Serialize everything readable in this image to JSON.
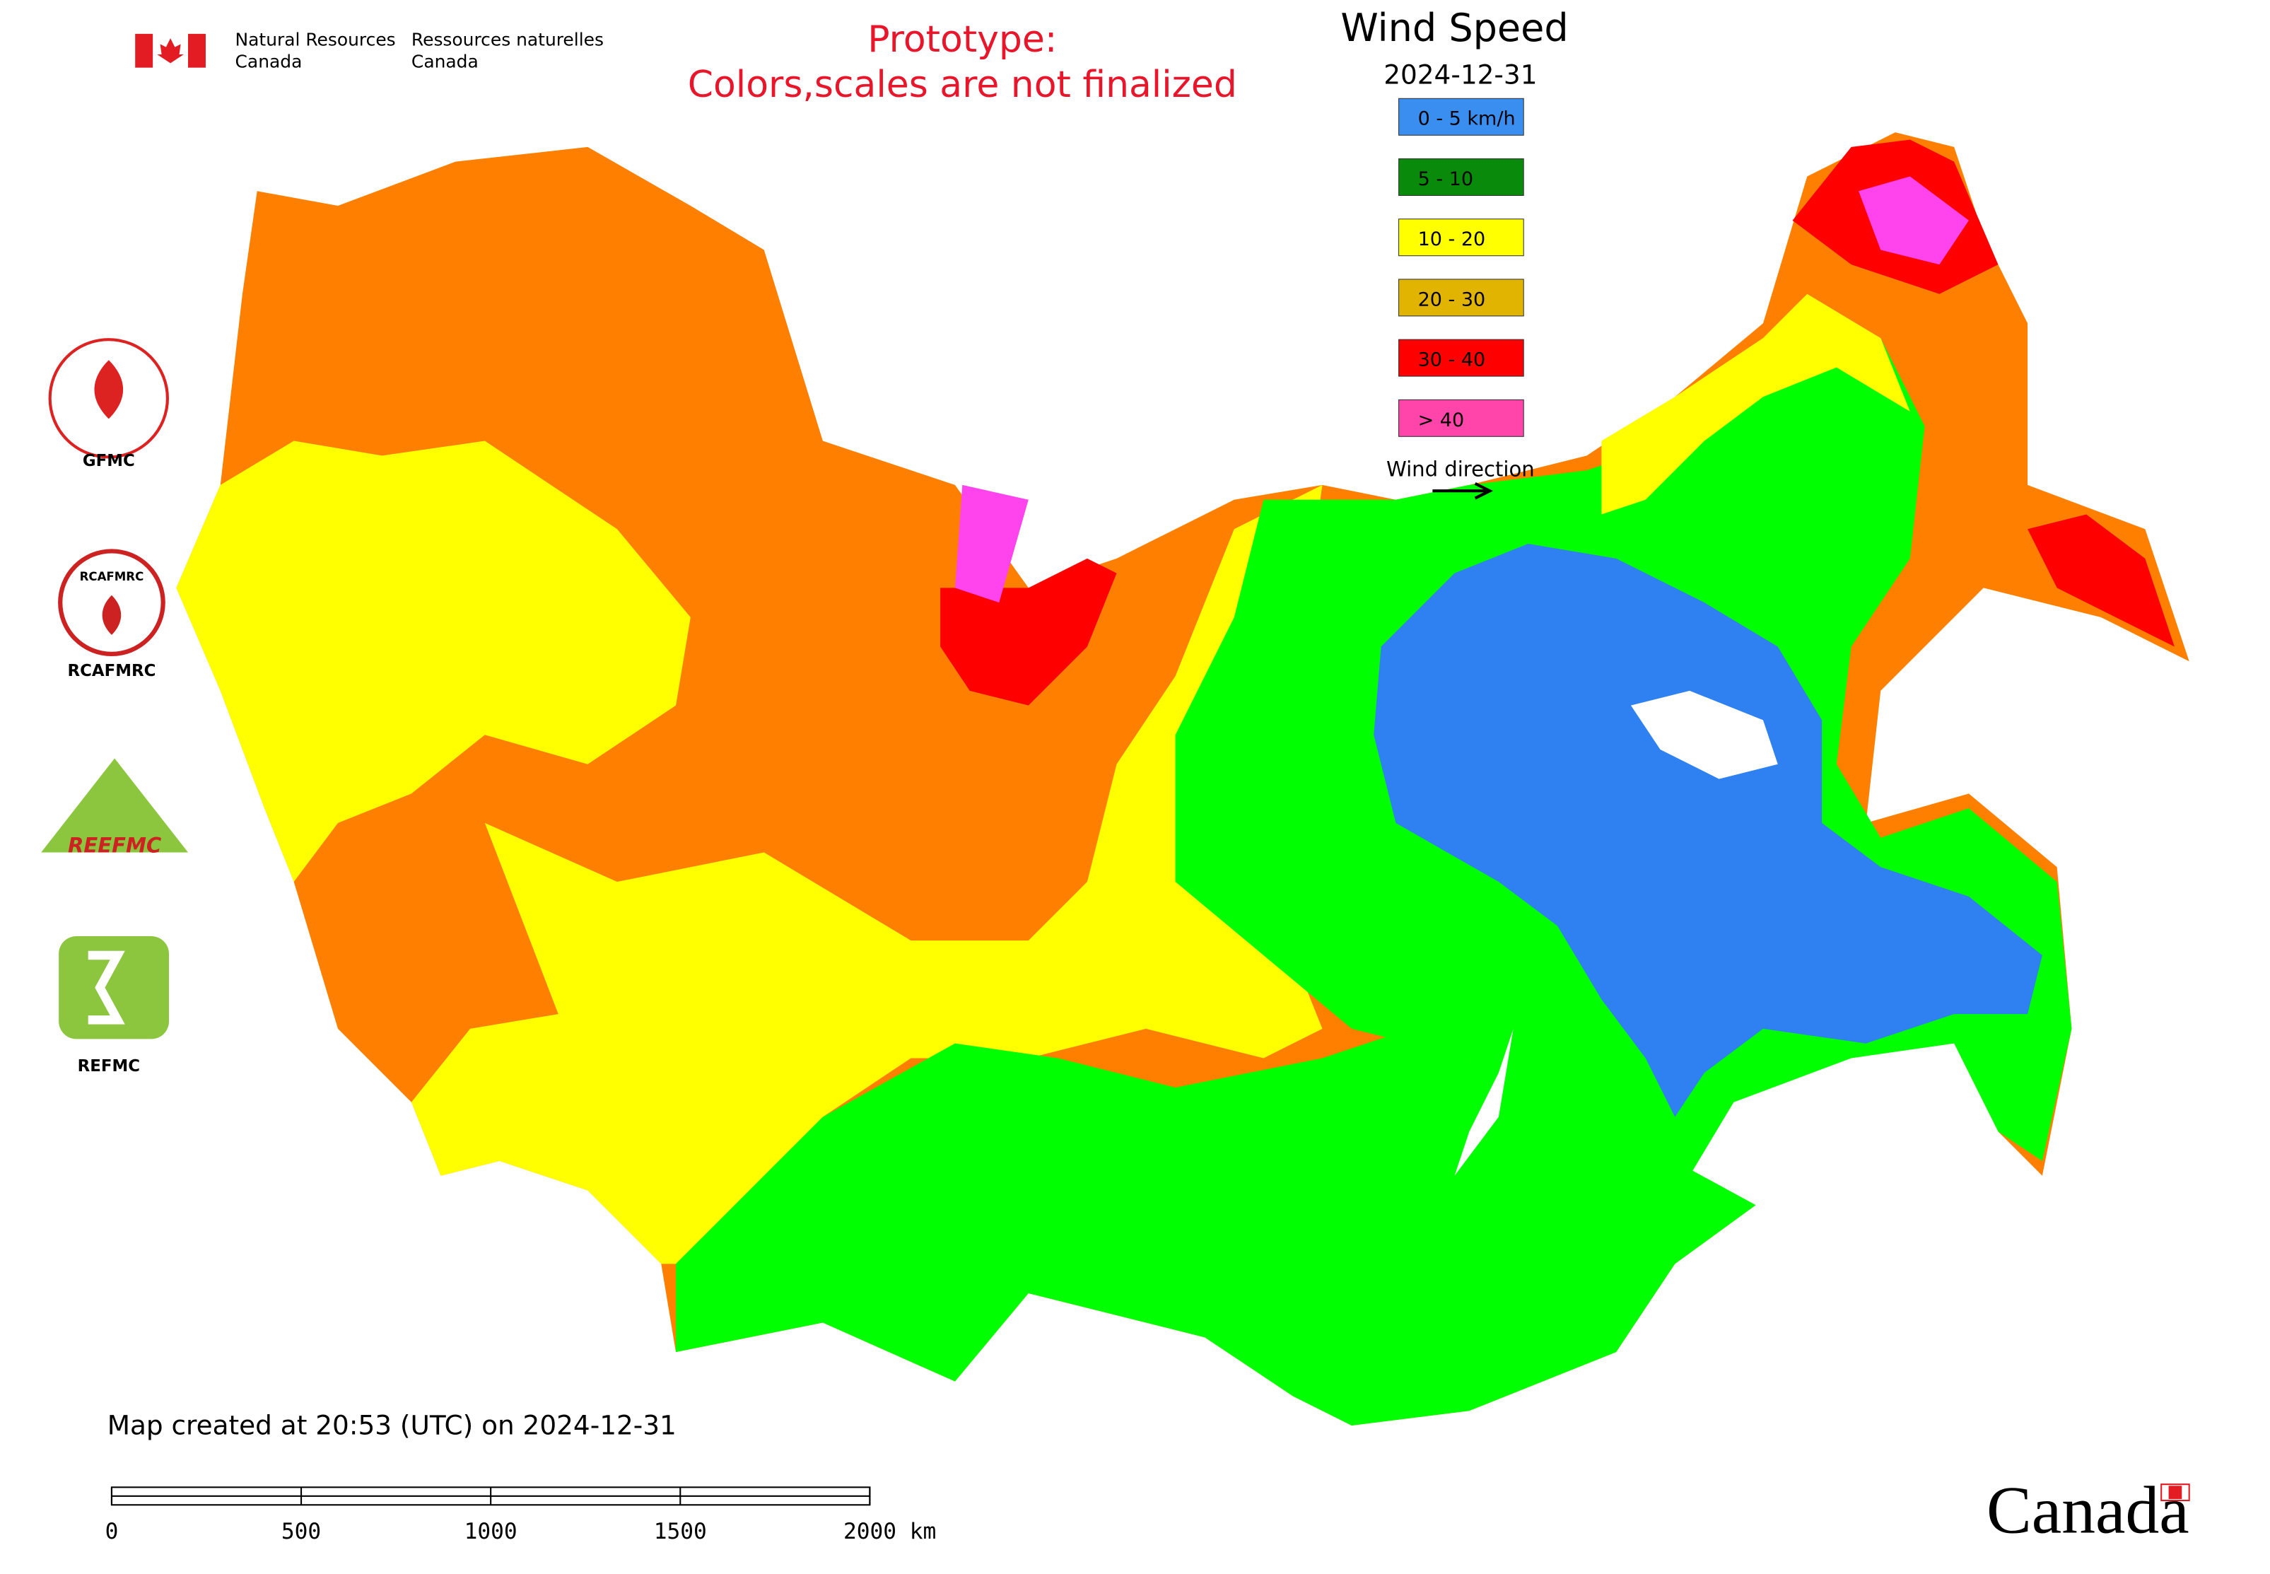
{
  "header": {
    "dept_en_1": "Natural Resources",
    "dept_en_2": "Canada",
    "dept_fr_1": "Ressources naturelles",
    "dept_fr_2": "Canada",
    "notice_1": "Prototype:",
    "notice_2": "Colors,scales are not finalized"
  },
  "legend": {
    "title": "Wind Speed",
    "date": "2024-12-31",
    "items": [
      {
        "label": "0 - 5 km/h",
        "color": "#3a8ef0"
      },
      {
        "label": "5 - 10",
        "color": "#0a8a0a"
      },
      {
        "label": "10 - 20",
        "color": "#ffff00"
      },
      {
        "label": "20 - 30",
        "color": "#e0b400"
      },
      {
        "label": "30 - 40",
        "color": "#ff0000"
      },
      {
        "label": "> 40",
        "color": "#ff44aa"
      }
    ],
    "wind_direction": "Wind direction"
  },
  "logos": {
    "gfmc": "GFMC",
    "rcafmrc_mark": "RCAFMRC",
    "rcafmrc": "RCAFMRC",
    "reefmc_mark": "REEFMC",
    "refmc": "REFMC"
  },
  "footer": {
    "created": "Map created at 20:53 (UTC) on 2024-12-31",
    "scale_ticks": [
      "0",
      "500",
      "1000",
      "1500",
      "2000 km"
    ],
    "wordmark": "Canada"
  }
}
